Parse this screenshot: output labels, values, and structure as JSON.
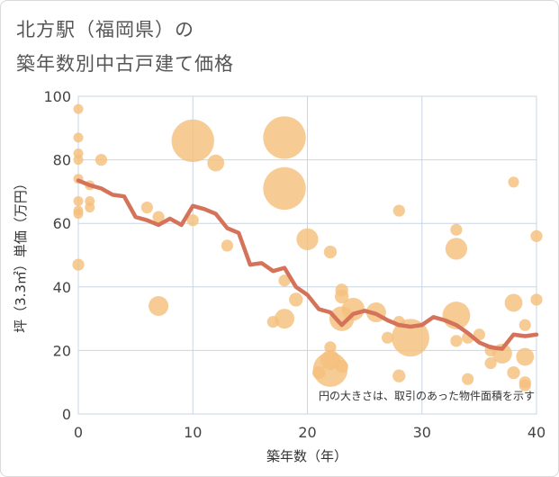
{
  "chart_data": {
    "type": "scatter",
    "title": [
      "北方駅（福岡県）の",
      "築年数別中古戸建て価格"
    ],
    "xlabel": "築年数（年）",
    "ylabel": "坪（3.3㎡）単価（万円）",
    "xlim": [
      0,
      40
    ],
    "ylim": [
      0,
      100
    ],
    "xticks": [
      0,
      10,
      20,
      30,
      40
    ],
    "yticks": [
      0,
      20,
      40,
      60,
      80,
      100
    ],
    "annotation": "円の大きさは、取引のあった物件面積を示す",
    "colors": {
      "bubble": "#f4c07c",
      "line": "#d4735a",
      "grid": "#c9d6e3"
    },
    "bubbles": [
      {
        "x": 0,
        "y": 96,
        "size": 1
      },
      {
        "x": 0,
        "y": 87,
        "size": 1
      },
      {
        "x": 0,
        "y": 82,
        "size": 1
      },
      {
        "x": 0,
        "y": 80,
        "size": 1
      },
      {
        "x": 0,
        "y": 74,
        "size": 1
      },
      {
        "x": 0,
        "y": 67,
        "size": 1
      },
      {
        "x": 0,
        "y": 64,
        "size": 1
      },
      {
        "x": 0,
        "y": 63,
        "size": 1
      },
      {
        "x": 0,
        "y": 47,
        "size": 1.2
      },
      {
        "x": 1,
        "y": 72,
        "size": 1
      },
      {
        "x": 1,
        "y": 67,
        "size": 1
      },
      {
        "x": 1,
        "y": 65,
        "size": 1
      },
      {
        "x": 2,
        "y": 80,
        "size": 1.2
      },
      {
        "x": 6,
        "y": 65,
        "size": 1.2
      },
      {
        "x": 7,
        "y": 62,
        "size": 1.2
      },
      {
        "x": 7,
        "y": 34,
        "size": 2
      },
      {
        "x": 10,
        "y": 86,
        "size": 4.3
      },
      {
        "x": 10,
        "y": 61,
        "size": 1.2
      },
      {
        "x": 12,
        "y": 79,
        "size": 1.7
      },
      {
        "x": 13,
        "y": 53,
        "size": 1.2
      },
      {
        "x": 17,
        "y": 29,
        "size": 1.2
      },
      {
        "x": 18,
        "y": 87,
        "size": 4.3
      },
      {
        "x": 18,
        "y": 71,
        "size": 4.3
      },
      {
        "x": 18,
        "y": 30,
        "size": 2
      },
      {
        "x": 18,
        "y": 42,
        "size": 1.2
      },
      {
        "x": 19,
        "y": 36,
        "size": 1.4
      },
      {
        "x": 20,
        "y": 55,
        "size": 2.2
      },
      {
        "x": 22,
        "y": 51,
        "size": 1.3
      },
      {
        "x": 22,
        "y": 21,
        "size": 1.2
      },
      {
        "x": 22,
        "y": 17,
        "size": 2
      },
      {
        "x": 21,
        "y": 13,
        "size": 1.3
      },
      {
        "x": 22,
        "y": 14,
        "size": 3.5
      },
      {
        "x": 23,
        "y": 39,
        "size": 1.3
      },
      {
        "x": 23,
        "y": 37,
        "size": 1.4
      },
      {
        "x": 23,
        "y": 30,
        "size": 2.5
      },
      {
        "x": 23,
        "y": 15,
        "size": 1.3
      },
      {
        "x": 24,
        "y": 33,
        "size": 2.3
      },
      {
        "x": 26,
        "y": 32,
        "size": 2
      },
      {
        "x": 27,
        "y": 24,
        "size": 1.2
      },
      {
        "x": 28,
        "y": 64,
        "size": 1.2
      },
      {
        "x": 28,
        "y": 29,
        "size": 1.2
      },
      {
        "x": 28,
        "y": 12,
        "size": 1.3
      },
      {
        "x": 29,
        "y": 24,
        "size": 3.8
      },
      {
        "x": 33,
        "y": 58,
        "size": 1.2
      },
      {
        "x": 33,
        "y": 52,
        "size": 2.2
      },
      {
        "x": 33,
        "y": 31,
        "size": 2.8
      },
      {
        "x": 33,
        "y": 23,
        "size": 1.2
      },
      {
        "x": 34,
        "y": 24,
        "size": 1.2
      },
      {
        "x": 34,
        "y": 11,
        "size": 1.2
      },
      {
        "x": 35,
        "y": 25,
        "size": 1.2
      },
      {
        "x": 36,
        "y": 20,
        "size": 1.2
      },
      {
        "x": 36,
        "y": 16,
        "size": 1.2
      },
      {
        "x": 37,
        "y": 19,
        "size": 2
      },
      {
        "x": 38,
        "y": 73,
        "size": 1.1
      },
      {
        "x": 38,
        "y": 35,
        "size": 1.8
      },
      {
        "x": 38,
        "y": 13,
        "size": 1.3
      },
      {
        "x": 39,
        "y": 28,
        "size": 1.2
      },
      {
        "x": 39,
        "y": 18,
        "size": 1.8
      },
      {
        "x": 39,
        "y": 10,
        "size": 1.2
      },
      {
        "x": 39,
        "y": 9,
        "size": 1.2
      },
      {
        "x": 40,
        "y": 56,
        "size": 1.2
      },
      {
        "x": 40,
        "y": 36,
        "size": 1.2
      }
    ],
    "line": {
      "x": [
        0,
        1,
        2,
        3,
        4,
        5,
        6,
        7,
        8,
        9,
        10,
        11,
        12,
        13,
        14,
        15,
        16,
        17,
        18,
        19,
        20,
        21,
        22,
        23,
        24,
        25,
        26,
        27,
        28,
        29,
        30,
        31,
        32,
        33,
        34,
        35,
        36,
        37,
        38,
        39,
        40
      ],
      "y": [
        73.5,
        72,
        71,
        69,
        68.5,
        62,
        61,
        59.5,
        61.5,
        59.5,
        65.5,
        64.5,
        63,
        58.5,
        57,
        47,
        47.5,
        45,
        46,
        40,
        37.5,
        33,
        32,
        28,
        31.5,
        32.5,
        31.5,
        29.5,
        28,
        27.5,
        28,
        30.5,
        29.5,
        28,
        25.5,
        22.5,
        21,
        20.5,
        25,
        24.5,
        25
      ]
    }
  }
}
